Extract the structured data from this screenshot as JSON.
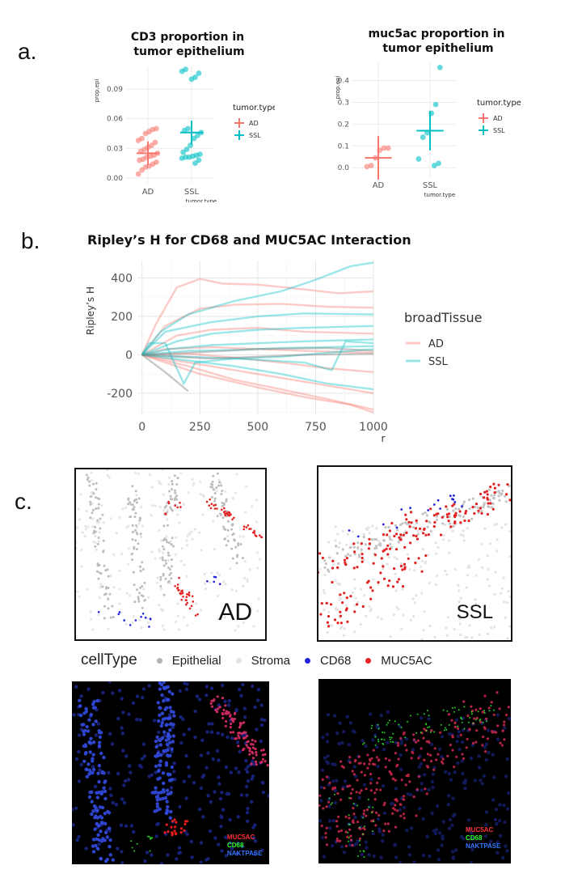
{
  "panels": {
    "a": "a.",
    "b": "b.",
    "c": "c."
  },
  "chart_data": [
    {
      "type": "scatter",
      "id": "cd3",
      "title_line1": "CD3 proportion in",
      "title_line2": "tumor epithelium",
      "ylabel": "prop.epi",
      "xlabel": "tumor.type",
      "categories": [
        "AD",
        "SSL"
      ],
      "ylim": [
        -0.005,
        0.113
      ],
      "yticks": [
        0.0,
        0.03,
        0.06,
        0.09
      ],
      "ytick_labels": [
        "0.00",
        "0.03",
        "0.06",
        "0.09"
      ],
      "legend_title": "tumor.type",
      "series": [
        {
          "name": "AD",
          "color": "#F8766D",
          "points": [
            0.004,
            0.008,
            0.011,
            0.012,
            0.014,
            0.016,
            0.018,
            0.019,
            0.021,
            0.022,
            0.023,
            0.025,
            0.027,
            0.029,
            0.031,
            0.033,
            0.036,
            0.038,
            0.04,
            0.045,
            0.047,
            0.049,
            0.05
          ],
          "mean": 0.025,
          "sd": 0.012
        },
        {
          "name": "SSL",
          "color": "#00BFC4",
          "points": [
            0.015,
            0.018,
            0.02,
            0.021,
            0.021,
            0.022,
            0.023,
            0.024,
            0.026,
            0.029,
            0.033,
            0.04,
            0.043,
            0.046,
            0.048,
            0.05,
            0.1,
            0.102,
            0.106,
            0.108,
            0.11
          ],
          "mean": 0.046,
          "sd": 0.012
        }
      ]
    },
    {
      "type": "scatter",
      "id": "muc5ac",
      "title_line1": "muc5ac proportion in",
      "title_line2": "tumor epithelium",
      "ylabel": "prop.epi",
      "xlabel": "tumor.type",
      "categories": [
        "AD",
        "SSL"
      ],
      "ylim": [
        -0.04,
        0.48
      ],
      "yticks": [
        0.0,
        0.1,
        0.2,
        0.3,
        0.4
      ],
      "ytick_labels": [
        "0.0",
        "0.1",
        "0.2",
        "0.3",
        "0.4"
      ],
      "legend_title": "tumor.type",
      "series": [
        {
          "name": "AD",
          "color": "#F8766D",
          "points": [
            0.005,
            0.01,
            0.045,
            0.08,
            0.09,
            0.09
          ],
          "mean": 0.045,
          "sd": 0.1
        },
        {
          "name": "SSL",
          "color": "#00BFC4",
          "points": [
            0.01,
            0.02,
            0.04,
            0.14,
            0.16,
            0.25,
            0.29,
            0.46
          ],
          "mean": 0.17,
          "sd": 0.09
        }
      ]
    },
    {
      "type": "line",
      "id": "ripley",
      "title": "Ripley’s H for CD68 and MUC5AC Interaction",
      "ylabel": "Ripley’s H",
      "xlabel": "r",
      "xlim": [
        -20,
        1000
      ],
      "ylim": [
        -310,
        490
      ],
      "xticks": [
        0,
        250,
        500,
        750,
        1000
      ],
      "yticks": [
        -200,
        0,
        200,
        400
      ],
      "legend_title": "broadTissue",
      "series": [
        {
          "name": "AD",
          "color": "#F8766D",
          "lines": [
            [
              [
                0,
                0
              ],
              [
                60,
                160
              ],
              [
                150,
                350
              ],
              [
                250,
                395
              ],
              [
                350,
                370
              ],
              [
                500,
                365
              ],
              [
                700,
                340
              ],
              [
                850,
                320
              ],
              [
                1000,
                330
              ]
            ],
            [
              [
                0,
                0
              ],
              [
                100,
                150
              ],
              [
                250,
                240
              ],
              [
                400,
                260
              ],
              [
                600,
                265
              ],
              [
                800,
                250
              ],
              [
                1000,
                245
              ]
            ],
            [
              [
                0,
                0
              ],
              [
                150,
                100
              ],
              [
                300,
                130
              ],
              [
                500,
                140
              ],
              [
                700,
                120
              ],
              [
                1000,
                110
              ]
            ],
            [
              [
                0,
                0
              ],
              [
                100,
                30
              ],
              [
                300,
                40
              ],
              [
                500,
                30
              ],
              [
                700,
                20
              ],
              [
                1000,
                10
              ]
            ],
            [
              [
                0,
                0
              ],
              [
                200,
                5
              ],
              [
                400,
                -15
              ],
              [
                600,
                -40
              ],
              [
                800,
                -70
              ],
              [
                1000,
                -90
              ]
            ],
            [
              [
                0,
                0
              ],
              [
                200,
                -40
              ],
              [
                400,
                -80
              ],
              [
                600,
                -120
              ],
              [
                800,
                -160
              ],
              [
                1000,
                -200
              ]
            ],
            [
              [
                0,
                0
              ],
              [
                200,
                -60
              ],
              [
                400,
                -130
              ],
              [
                600,
                -180
              ],
              [
                800,
                -230
              ],
              [
                1000,
                -285
              ]
            ],
            [
              [
                0,
                0
              ],
              [
                250,
                -100
              ],
              [
                500,
                -170
              ],
              [
                700,
                -220
              ],
              [
                900,
                -260
              ],
              [
                1000,
                -300
              ]
            ]
          ]
        },
        {
          "name": "SSL",
          "color": "#00BFC4",
          "lines": [
            [
              [
                0,
                0
              ],
              [
                80,
                120
              ],
              [
                200,
                210
              ],
              [
                400,
                280
              ],
              [
                600,
                330
              ],
              [
                750,
                390
              ],
              [
                900,
                460
              ],
              [
                1000,
                480
              ]
            ],
            [
              [
                0,
                0
              ],
              [
                100,
                120
              ],
              [
                300,
                170
              ],
              [
                500,
                200
              ],
              [
                700,
                215
              ],
              [
                1000,
                210
              ]
            ],
            [
              [
                0,
                0
              ],
              [
                150,
                70
              ],
              [
                300,
                110
              ],
              [
                500,
                130
              ],
              [
                700,
                140
              ],
              [
                1000,
                150
              ]
            ],
            [
              [
                0,
                0
              ],
              [
                120,
                30
              ],
              [
                300,
                50
              ],
              [
                500,
                60
              ],
              [
                700,
                70
              ],
              [
                1000,
                80
              ]
            ],
            [
              [
                0,
                0
              ],
              [
                200,
                20
              ],
              [
                400,
                25
              ],
              [
                600,
                35
              ],
              [
                800,
                40
              ],
              [
                1000,
                45
              ]
            ],
            [
              [
                0,
                0
              ],
              [
                200,
                -10
              ],
              [
                400,
                -20
              ],
              [
                600,
                -10
              ],
              [
                800,
                10
              ],
              [
                1000,
                30
              ]
            ],
            [
              [
                0,
                0
              ],
              [
                30,
                60
              ],
              [
                100,
                60
              ],
              [
                180,
                -150
              ],
              [
                230,
                -40
              ],
              [
                400,
                -20
              ],
              [
                700,
                -40
              ],
              [
                820,
                -80
              ],
              [
                880,
                70
              ],
              [
                1000,
                60
              ]
            ],
            [
              [
                0,
                0
              ],
              [
                200,
                -30
              ],
              [
                400,
                -60
              ],
              [
                600,
                -100
              ],
              [
                800,
                -150
              ],
              [
                1000,
                -180
              ]
            ]
          ]
        },
        {
          "name": "",
          "color": "#888888",
          "lines": [
            [
              [
                0,
                0
              ],
              [
                100,
                -90
              ],
              [
                200,
                -190
              ]
            ],
            [
              [
                0,
                0
              ],
              [
                300,
                -20
              ],
              [
                500,
                -10
              ],
              [
                700,
                0
              ],
              [
                1000,
                5
              ]
            ],
            [
              [
                0,
                0
              ],
              [
                200,
                10
              ],
              [
                500,
                30
              ],
              [
                800,
                35
              ],
              [
                1000,
                20
              ]
            ]
          ]
        }
      ]
    }
  ],
  "maps": {
    "ad_label": "AD",
    "ssl_label": "SSL",
    "legend_title": "cellType",
    "legend_items": [
      {
        "label": "Epithelial",
        "color": "#b3b3b3"
      },
      {
        "label": "Stroma",
        "color": "#e3e3e3"
      },
      {
        "label": "CD68",
        "color": "#2222dd"
      },
      {
        "label": "MUC5AC",
        "color": "#ee2222"
      }
    ]
  },
  "if_images": {
    "left_legend": [
      "MUC5AC",
      "CD68",
      "NAKTPASE"
    ],
    "right_legend": [
      "MUC5AC",
      "CD68",
      "NAKTPASE"
    ],
    "colors": [
      "#ff3333",
      "#33ff33",
      "#3377ff"
    ]
  }
}
